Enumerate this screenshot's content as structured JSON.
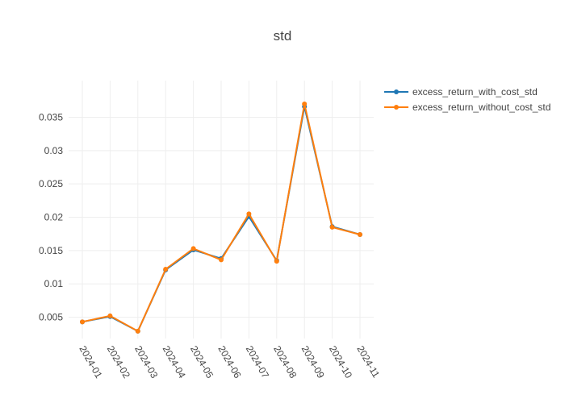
{
  "chart_data": {
    "type": "line",
    "title": "std",
    "xlabel": "",
    "ylabel": "",
    "categories": [
      "2024-01",
      "2024-02",
      "2024-03",
      "2024-04",
      "2024-05",
      "2024-06",
      "2024-07",
      "2024-08",
      "2024-09",
      "2024-10",
      "2024-11"
    ],
    "y_ticks": [
      0.005,
      0.01,
      0.015,
      0.02,
      0.025,
      0.03,
      0.035
    ],
    "y_tick_labels": [
      "0.005",
      "0.01",
      "0.015",
      "0.02",
      "0.025",
      "0.03",
      "0.035"
    ],
    "ylim": [
      0.0018,
      0.0405
    ],
    "grid": true,
    "legend_position": "top-right",
    "series": [
      {
        "name": "excess_return_with_cost_std",
        "color": "#1f77b4",
        "values": [
          0.0043,
          0.0051,
          0.0029,
          0.0121,
          0.0151,
          0.0138,
          0.0201,
          0.0135,
          0.0366,
          0.0186,
          0.0174
        ]
      },
      {
        "name": "excess_return_without_cost_std",
        "color": "#ff7f0e",
        "values": [
          0.0043,
          0.0052,
          0.0029,
          0.0122,
          0.0153,
          0.0136,
          0.0205,
          0.0134,
          0.037,
          0.0185,
          0.0174
        ]
      }
    ]
  }
}
